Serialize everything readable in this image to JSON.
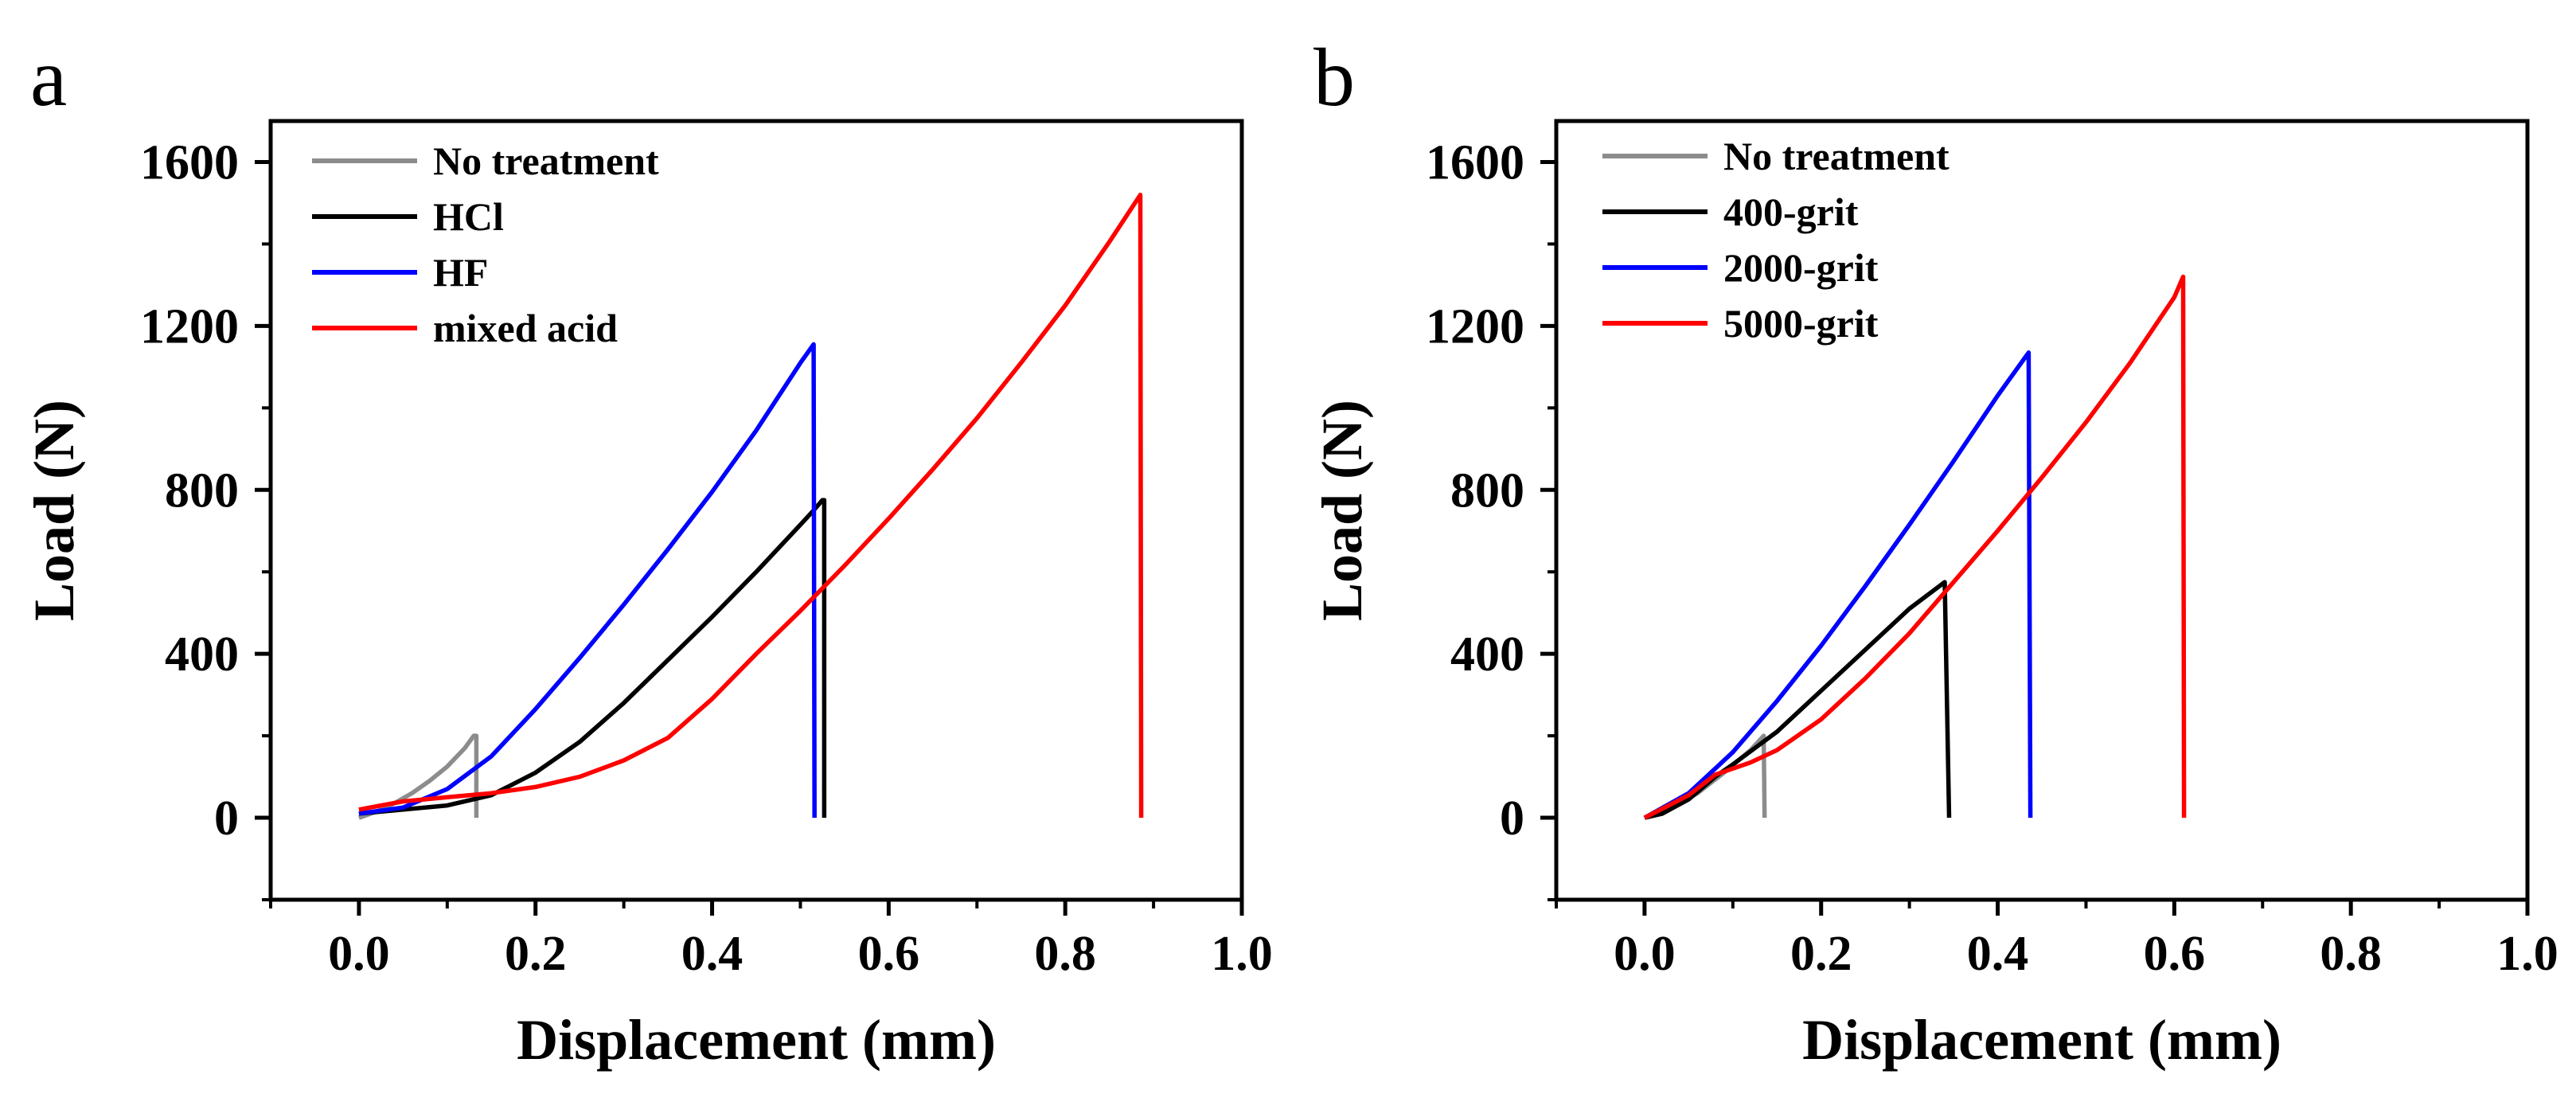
{
  "chart_data": [
    {
      "type": "line",
      "title": "a",
      "xlabel": "Displacement (mm)",
      "ylabel": "Load (N)",
      "xlim": [
        -0.1,
        1.0
      ],
      "ylim": [
        -200,
        1700
      ],
      "xticks": [
        0.0,
        0.2,
        0.4,
        0.6,
        0.8,
        1.0
      ],
      "xtick_labels": [
        "0.0",
        "0.2",
        "0.4",
        "0.6",
        "0.8",
        "1.0"
      ],
      "yticks": [
        0,
        400,
        800,
        1200,
        1600
      ],
      "ytick_labels": [
        "0",
        "400",
        "800",
        "1200",
        "1600"
      ],
      "legend_position": "top-left",
      "series": [
        {
          "name": "No treatment",
          "color": "#8c8c8c",
          "x": [
            0.0,
            0.02,
            0.04,
            0.06,
            0.08,
            0.1,
            0.12,
            0.13,
            0.133,
            0.133
          ],
          "y": [
            0,
            15,
            35,
            60,
            90,
            125,
            170,
            200,
            200,
            0
          ]
        },
        {
          "name": "HCl",
          "color": "#000000",
          "x": [
            0.0,
            0.05,
            0.1,
            0.15,
            0.2,
            0.25,
            0.3,
            0.35,
            0.4,
            0.45,
            0.5,
            0.515,
            0.525,
            0.527,
            0.527
          ],
          "y": [
            10,
            20,
            30,
            55,
            110,
            185,
            280,
            385,
            490,
            600,
            715,
            750,
            775,
            775,
            0
          ]
        },
        {
          "name": "HF",
          "color": "#0000ff",
          "x": [
            0.0,
            0.05,
            0.1,
            0.15,
            0.2,
            0.25,
            0.3,
            0.35,
            0.4,
            0.45,
            0.5,
            0.515,
            0.516
          ],
          "y": [
            10,
            25,
            70,
            150,
            265,
            390,
            520,
            655,
            795,
            945,
            1110,
            1155,
            0
          ]
        },
        {
          "name": "mixed acid",
          "color": "#ff0000",
          "x": [
            0.0,
            0.05,
            0.1,
            0.15,
            0.2,
            0.25,
            0.3,
            0.35,
            0.4,
            0.45,
            0.5,
            0.55,
            0.6,
            0.65,
            0.7,
            0.75,
            0.8,
            0.85,
            0.885,
            0.886
          ],
          "y": [
            20,
            40,
            50,
            60,
            75,
            100,
            140,
            195,
            290,
            400,
            505,
            615,
            730,
            850,
            975,
            1110,
            1250,
            1405,
            1520,
            0
          ]
        }
      ]
    },
    {
      "type": "line",
      "title": "b",
      "xlabel": "Displacement (mm)",
      "ylabel": "Load (N)",
      "xlim": [
        -0.1,
        1.0
      ],
      "ylim": [
        -200,
        1700
      ],
      "xticks": [
        0.0,
        0.2,
        0.4,
        0.6,
        0.8,
        1.0
      ],
      "xtick_labels": [
        "0.0",
        "0.2",
        "0.4",
        "0.6",
        "0.8",
        "1.0"
      ],
      "yticks": [
        0,
        400,
        800,
        1200,
        1600
      ],
      "ytick_labels": [
        "0",
        "400",
        "800",
        "1200",
        "1600"
      ],
      "legend_position": "top-left",
      "series": [
        {
          "name": "No treatment",
          "color": "#8c8c8c",
          "x": [
            0.0,
            0.03,
            0.06,
            0.09,
            0.12,
            0.135,
            0.136
          ],
          "y": [
            0,
            25,
            60,
            110,
            165,
            200,
            0
          ]
        },
        {
          "name": "400-grit",
          "color": "#000000",
          "x": [
            0.0,
            0.02,
            0.05,
            0.08,
            0.1,
            0.15,
            0.2,
            0.25,
            0.3,
            0.34,
            0.345
          ],
          "y": [
            0,
            10,
            45,
            100,
            130,
            210,
            310,
            410,
            510,
            575,
            0
          ]
        },
        {
          "name": "2000-grit",
          "color": "#0000ff",
          "x": [
            0.0,
            0.05,
            0.1,
            0.15,
            0.2,
            0.25,
            0.3,
            0.35,
            0.4,
            0.435,
            0.437
          ],
          "y": [
            0,
            60,
            160,
            285,
            420,
            565,
            715,
            870,
            1030,
            1135,
            0
          ]
        },
        {
          "name": "5000-grit",
          "color": "#ff0000",
          "x": [
            0.0,
            0.05,
            0.08,
            0.1,
            0.12,
            0.15,
            0.2,
            0.25,
            0.3,
            0.35,
            0.4,
            0.45,
            0.5,
            0.55,
            0.6,
            0.61,
            0.611
          ],
          "y": [
            0,
            55,
            105,
            120,
            135,
            165,
            240,
            340,
            450,
            575,
            700,
            830,
            965,
            1110,
            1270,
            1320,
            0
          ]
        }
      ]
    }
  ]
}
